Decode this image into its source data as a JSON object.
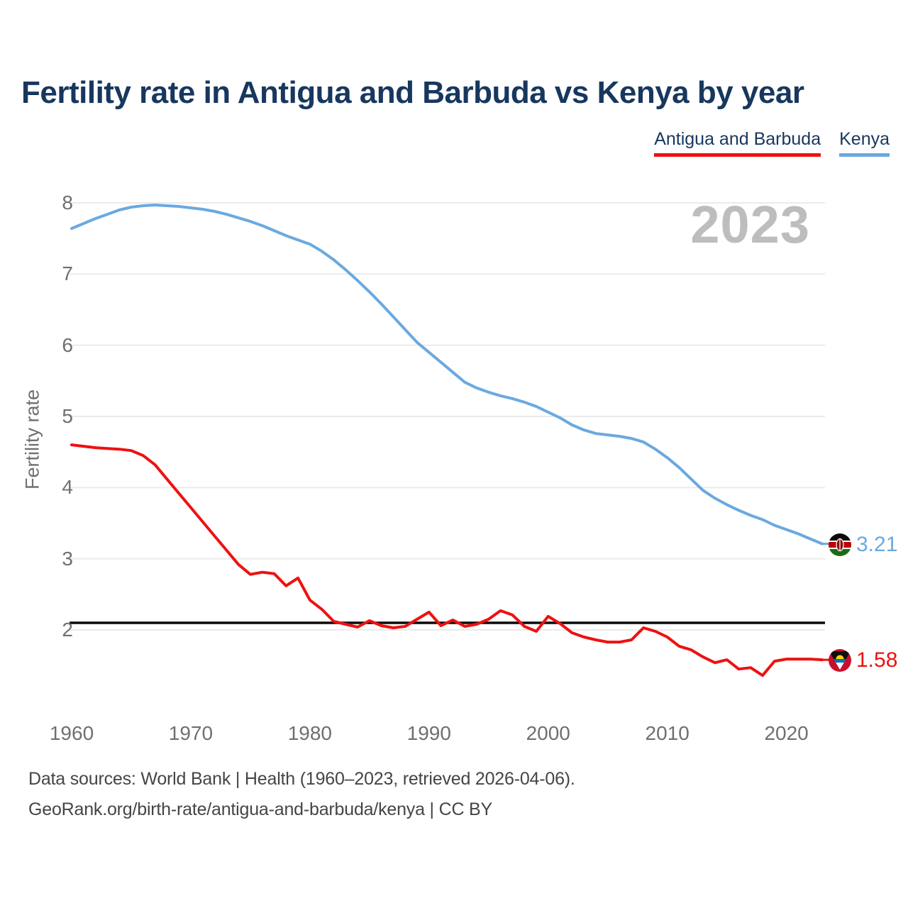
{
  "page": {
    "watermark_year": "2023"
  },
  "legend": {
    "items": [
      {
        "label": "Antigua and Barbuda",
        "color": "#ee1111"
      },
      {
        "label": "Kenya",
        "color": "#6aa9e0"
      }
    ]
  },
  "footer": {
    "line1": "Data sources: World Bank | Health (1960–2023, retrieved 2026-04-06).",
    "line2": "GeoRank.org/birth-rate/antigua-and-barbuda/kenya | CC BY"
  },
  "chart_data": {
    "type": "line",
    "title": "Fertility rate in Antigua and Barbuda vs Kenya by year",
    "xlabel": "",
    "ylabel": "Fertility rate",
    "x_ticks": [
      1960,
      1970,
      1980,
      1990,
      2000,
      2010,
      2020
    ],
    "y_ticks": [
      2,
      3,
      4,
      5,
      6,
      7,
      8
    ],
    "xlim": [
      1960,
      2023
    ],
    "ylim": [
      2,
      8
    ],
    "grid": "horizontal",
    "legend_position": "top-right",
    "reference_line": {
      "value": 2.1,
      "color": "#0a0a0a"
    },
    "start_year": 1960,
    "end_year": 2023,
    "series": [
      {
        "name": "Antigua and Barbuda",
        "color": "#ee1111",
        "end_value_label": "1.58",
        "flag_icon": "antigua-and-barbuda-flag-icon",
        "values": [
          4.6,
          4.58,
          4.56,
          4.55,
          4.54,
          4.52,
          4.45,
          4.32,
          4.12,
          3.92,
          3.72,
          3.52,
          3.32,
          3.12,
          2.92,
          2.78,
          2.81,
          2.79,
          2.62,
          2.73,
          2.42,
          2.29,
          2.12,
          2.08,
          2.04,
          2.13,
          2.06,
          2.03,
          2.05,
          2.15,
          2.25,
          2.06,
          2.14,
          2.05,
          2.08,
          2.15,
          2.27,
          2.21,
          2.05,
          1.98,
          2.19,
          2.09,
          1.96,
          1.9,
          1.86,
          1.83,
          1.83,
          1.86,
          2.03,
          1.98,
          1.9,
          1.77,
          1.72,
          1.62,
          1.54,
          1.58,
          1.45,
          1.47,
          1.36,
          1.56,
          1.59,
          1.59,
          1.59,
          1.58
        ]
      },
      {
        "name": "Kenya",
        "color": "#6aa9e0",
        "end_value_label": "3.21",
        "flag_icon": "kenya-flag-icon",
        "values": [
          7.64,
          7.71,
          7.78,
          7.84,
          7.9,
          7.94,
          7.96,
          7.97,
          7.96,
          7.95,
          7.93,
          7.91,
          7.88,
          7.84,
          7.79,
          7.74,
          7.68,
          7.61,
          7.54,
          7.48,
          7.42,
          7.32,
          7.2,
          7.06,
          6.91,
          6.75,
          6.58,
          6.4,
          6.22,
          6.04,
          5.9,
          5.76,
          5.62,
          5.48,
          5.4,
          5.34,
          5.29,
          5.25,
          5.2,
          5.14,
          5.06,
          4.98,
          4.88,
          4.81,
          4.76,
          4.74,
          4.72,
          4.69,
          4.64,
          4.54,
          4.42,
          4.28,
          4.12,
          3.96,
          3.85,
          3.76,
          3.68,
          3.61,
          3.55,
          3.47,
          3.41,
          3.35,
          3.28,
          3.21
        ]
      }
    ]
  }
}
